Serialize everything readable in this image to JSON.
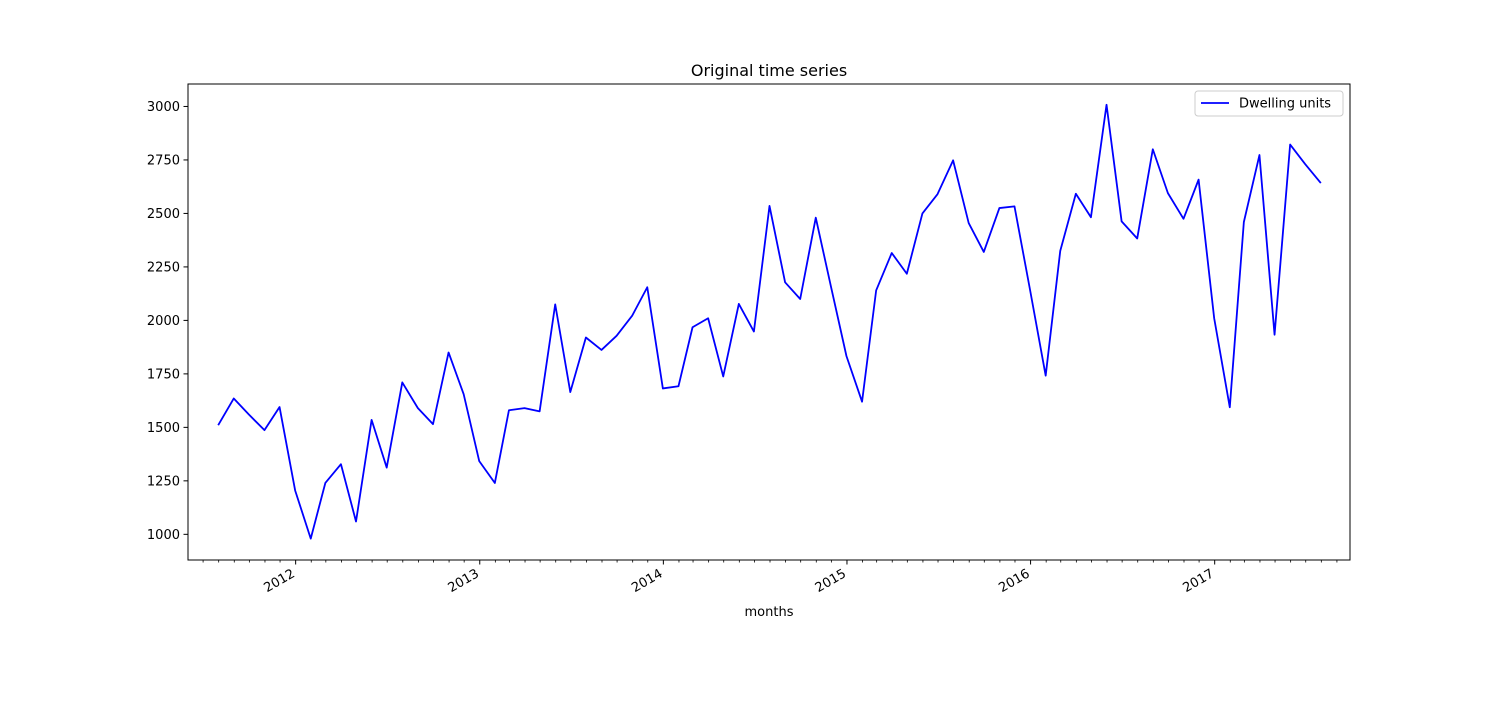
{
  "chart_data": {
    "type": "line",
    "title": "Original time series",
    "xlabel": "months",
    "ylabel": "",
    "ylim": [
      880,
      3105
    ],
    "xlim": [
      "2011-06-01",
      "2017-09-27"
    ],
    "grid": false,
    "legend_position": "top-right",
    "x_tick_labels": [
      {
        "date": "2012-01-01",
        "label": "2012"
      },
      {
        "date": "2013-01-01",
        "label": "2013"
      },
      {
        "date": "2014-01-01",
        "label": "2014"
      },
      {
        "date": "2015-01-01",
        "label": "2015"
      },
      {
        "date": "2016-01-01",
        "label": "2016"
      },
      {
        "date": "2017-01-01",
        "label": "2017"
      }
    ],
    "y_tick_labels": [
      {
        "value": 1000,
        "label": "1000"
      },
      {
        "value": 1250,
        "label": "1250"
      },
      {
        "value": 1500,
        "label": "1500"
      },
      {
        "value": 1750,
        "label": "1750"
      },
      {
        "value": 2000,
        "label": "2000"
      },
      {
        "value": 2250,
        "label": "2250"
      },
      {
        "value": 2500,
        "label": "2500"
      },
      {
        "value": 2750,
        "label": "2750"
      },
      {
        "value": 3000,
        "label": "3000"
      }
    ],
    "series": [
      {
        "name": "Dwelling units",
        "color": "#0000ff",
        "x": [
          "2011-07-31",
          "2011-08-31",
          "2011-09-30",
          "2011-10-31",
          "2011-11-30",
          "2011-12-31",
          "2012-01-31",
          "2012-02-29",
          "2012-03-31",
          "2012-04-30",
          "2012-05-31",
          "2012-06-30",
          "2012-07-31",
          "2012-08-31",
          "2012-09-30",
          "2012-10-31",
          "2012-11-30",
          "2012-12-31",
          "2013-01-31",
          "2013-02-28",
          "2013-03-31",
          "2013-04-30",
          "2013-05-31",
          "2013-06-30",
          "2013-07-31",
          "2013-08-31",
          "2013-09-30",
          "2013-10-31",
          "2013-11-30",
          "2013-12-31",
          "2014-01-31",
          "2014-02-28",
          "2014-03-31",
          "2014-04-30",
          "2014-05-31",
          "2014-06-30",
          "2014-07-31",
          "2014-08-31",
          "2014-09-30",
          "2014-10-31",
          "2014-11-30",
          "2014-12-31",
          "2015-01-31",
          "2015-02-28",
          "2015-03-31",
          "2015-04-30",
          "2015-05-31",
          "2015-06-30",
          "2015-07-31",
          "2015-08-31",
          "2015-09-30",
          "2015-10-31",
          "2015-11-30",
          "2015-12-31",
          "2016-01-31",
          "2016-02-29",
          "2016-03-31",
          "2016-04-30",
          "2016-05-31",
          "2016-06-30",
          "2016-07-31",
          "2016-08-31",
          "2016-09-30",
          "2016-10-31",
          "2016-11-30",
          "2016-12-31",
          "2017-01-31",
          "2017-02-28",
          "2017-03-31",
          "2017-04-30",
          "2017-05-31",
          "2017-06-30",
          "2017-07-31"
        ],
        "values": [
          1510,
          1635,
          1560,
          1487,
          1595,
          1205,
          980,
          1240,
          1328,
          1060,
          1535,
          1312,
          1710,
          1590,
          1515,
          1850,
          1655,
          1342,
          1240,
          1580,
          1590,
          1575,
          2075,
          1665,
          1920,
          1862,
          1928,
          2022,
          2155,
          1682,
          1692,
          1968,
          2010,
          1738,
          2077,
          1948,
          2535,
          2178,
          2100,
          2480,
          2160,
          1833,
          1620,
          2140,
          2315,
          2218,
          2500,
          2590,
          2748,
          2455,
          2320,
          2525,
          2533,
          2142,
          1742,
          2325,
          2592,
          2482,
          3008,
          2463,
          2383,
          2800,
          2595,
          2475,
          2658,
          2010,
          1594,
          2460,
          2773,
          1933,
          2822,
          2730,
          2642
        ]
      }
    ]
  }
}
